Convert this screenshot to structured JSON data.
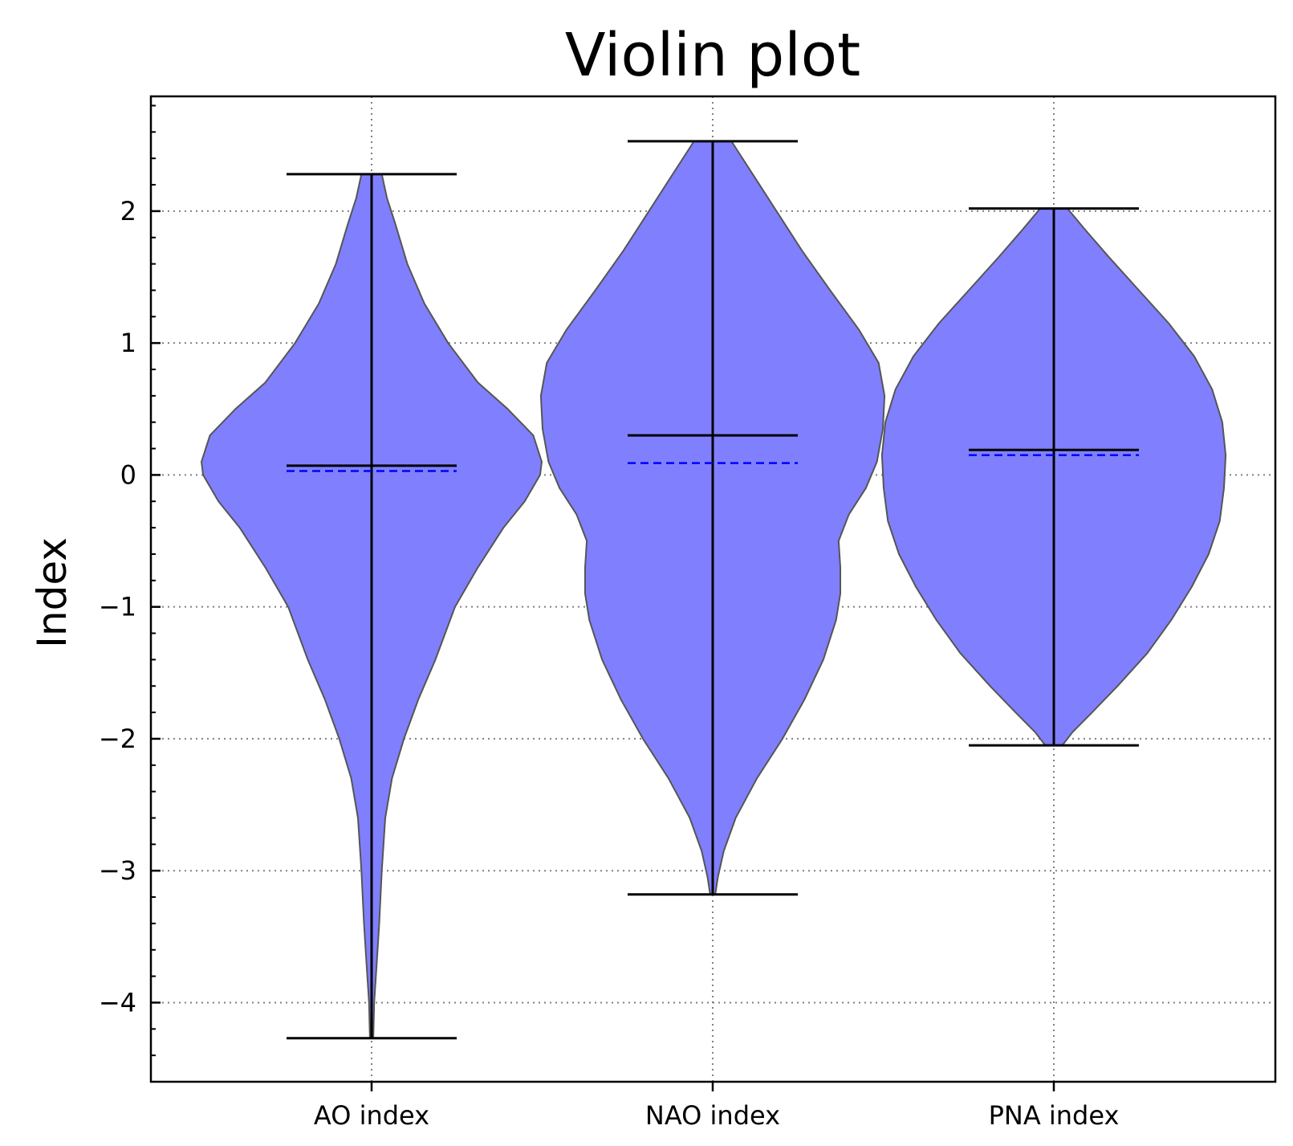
{
  "chart_data": {
    "type": "violin",
    "title": "Violin plot",
    "xlabel": "",
    "ylabel": "Index",
    "ylim": [
      -4.6,
      2.87
    ],
    "grid": true,
    "categories": [
      "AO index",
      "NAO index",
      "PNA index"
    ],
    "y_ticks": [
      {
        "value": 2,
        "label": "2"
      },
      {
        "value": 1,
        "label": "1"
      },
      {
        "value": 0,
        "label": "0"
      },
      {
        "value": -1,
        "label": "−1"
      },
      {
        "value": -2,
        "label": "−2"
      },
      {
        "value": -3,
        "label": "−3"
      },
      {
        "value": -4,
        "label": "−4"
      }
    ],
    "colors": {
      "violin_fill": "#8080ff",
      "violin_edge": "#555555",
      "mean_line": "#0000ff",
      "grid": "#808080"
    },
    "series": [
      {
        "category": "AO index",
        "min": -4.27,
        "max": 2.28,
        "median": 0.07,
        "mean": 0.03,
        "density": [
          [
            -4.27,
            0.02
          ],
          [
            -4.0,
            0.03
          ],
          [
            -3.7,
            0.06
          ],
          [
            -3.4,
            0.09
          ],
          [
            -3.0,
            0.12
          ],
          [
            -2.6,
            0.16
          ],
          [
            -2.3,
            0.24
          ],
          [
            -2.0,
            0.38
          ],
          [
            -1.7,
            0.55
          ],
          [
            -1.4,
            0.75
          ],
          [
            -1.0,
            0.98
          ],
          [
            -0.7,
            1.25
          ],
          [
            -0.4,
            1.55
          ],
          [
            -0.2,
            1.8
          ],
          [
            0.0,
            1.98
          ],
          [
            0.1,
            2.0
          ],
          [
            0.3,
            1.9
          ],
          [
            0.5,
            1.6
          ],
          [
            0.7,
            1.25
          ],
          [
            1.0,
            0.9
          ],
          [
            1.3,
            0.62
          ],
          [
            1.6,
            0.42
          ],
          [
            1.9,
            0.28
          ],
          [
            2.1,
            0.18
          ],
          [
            2.28,
            0.12
          ]
        ]
      },
      {
        "category": "NAO index",
        "min": -3.18,
        "max": 2.53,
        "median": 0.3,
        "mean": 0.09,
        "density": [
          [
            -3.18,
            0.03
          ],
          [
            -3.05,
            0.06
          ],
          [
            -2.85,
            0.13
          ],
          [
            -2.6,
            0.27
          ],
          [
            -2.3,
            0.52
          ],
          [
            -2.0,
            0.82
          ],
          [
            -1.7,
            1.08
          ],
          [
            -1.4,
            1.3
          ],
          [
            -1.1,
            1.45
          ],
          [
            -0.9,
            1.5
          ],
          [
            -0.7,
            1.5
          ],
          [
            -0.5,
            1.48
          ],
          [
            -0.3,
            1.6
          ],
          [
            -0.1,
            1.8
          ],
          [
            0.1,
            1.93
          ],
          [
            0.35,
            2.0
          ],
          [
            0.6,
            2.02
          ],
          [
            0.85,
            1.95
          ],
          [
            1.1,
            1.72
          ],
          [
            1.4,
            1.38
          ],
          [
            1.7,
            1.05
          ],
          [
            2.0,
            0.75
          ],
          [
            2.25,
            0.5
          ],
          [
            2.45,
            0.3
          ],
          [
            2.53,
            0.22
          ]
        ]
      },
      {
        "category": "PNA index",
        "min": -2.05,
        "max": 2.02,
        "median": 0.19,
        "mean": 0.15,
        "density": [
          [
            -2.05,
            0.1
          ],
          [
            -1.95,
            0.22
          ],
          [
            -1.8,
            0.45
          ],
          [
            -1.6,
            0.75
          ],
          [
            -1.35,
            1.1
          ],
          [
            -1.1,
            1.38
          ],
          [
            -0.85,
            1.62
          ],
          [
            -0.6,
            1.82
          ],
          [
            -0.35,
            1.95
          ],
          [
            -0.1,
            2.0
          ],
          [
            0.15,
            2.02
          ],
          [
            0.4,
            1.98
          ],
          [
            0.65,
            1.86
          ],
          [
            0.9,
            1.65
          ],
          [
            1.15,
            1.35
          ],
          [
            1.4,
            1.0
          ],
          [
            1.65,
            0.65
          ],
          [
            1.85,
            0.38
          ],
          [
            2.02,
            0.16
          ]
        ]
      }
    ]
  }
}
